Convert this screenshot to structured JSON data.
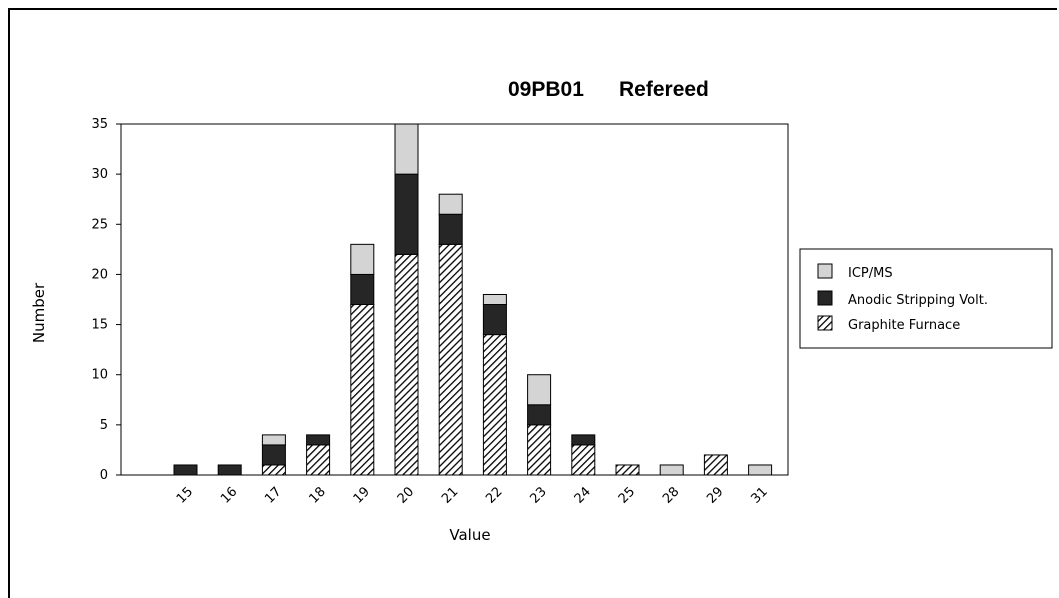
{
  "chart_data": {
    "type": "bar",
    "stacked": true,
    "title": "09PB01",
    "subtitle": "Refereed",
    "xlabel": "Value",
    "ylabel": "Number",
    "categories": [
      "15",
      "16",
      "17",
      "18",
      "19",
      "20",
      "21",
      "22",
      "23",
      "24",
      "25",
      "28",
      "29",
      "31"
    ],
    "ylim": [
      0,
      35
    ],
    "yticks": [
      0,
      5,
      10,
      15,
      20,
      25,
      30,
      35
    ],
    "grid": false,
    "legend_position": "right",
    "series": [
      {
        "name": "Graphite Furnace",
        "pattern": "hatch",
        "color": "#ffffff",
        "values": [
          0,
          0,
          1,
          3,
          17,
          22,
          23,
          14,
          5,
          3,
          1,
          0,
          2,
          0
        ]
      },
      {
        "name": "Anodic Stripping Volt.",
        "pattern": "solid",
        "color": "#262626",
        "values": [
          1,
          1,
          2,
          1,
          3,
          8,
          3,
          3,
          2,
          1,
          0,
          0,
          0,
          0
        ]
      },
      {
        "name": "ICP/MS",
        "pattern": "solid",
        "color": "#d4d4d4",
        "values": [
          0,
          0,
          1,
          0,
          3,
          5,
          2,
          1,
          3,
          0,
          0,
          1,
          0,
          1
        ]
      }
    ],
    "legend_order": [
      "ICP/MS",
      "Anodic Stripping Volt.",
      "Graphite Furnace"
    ]
  }
}
